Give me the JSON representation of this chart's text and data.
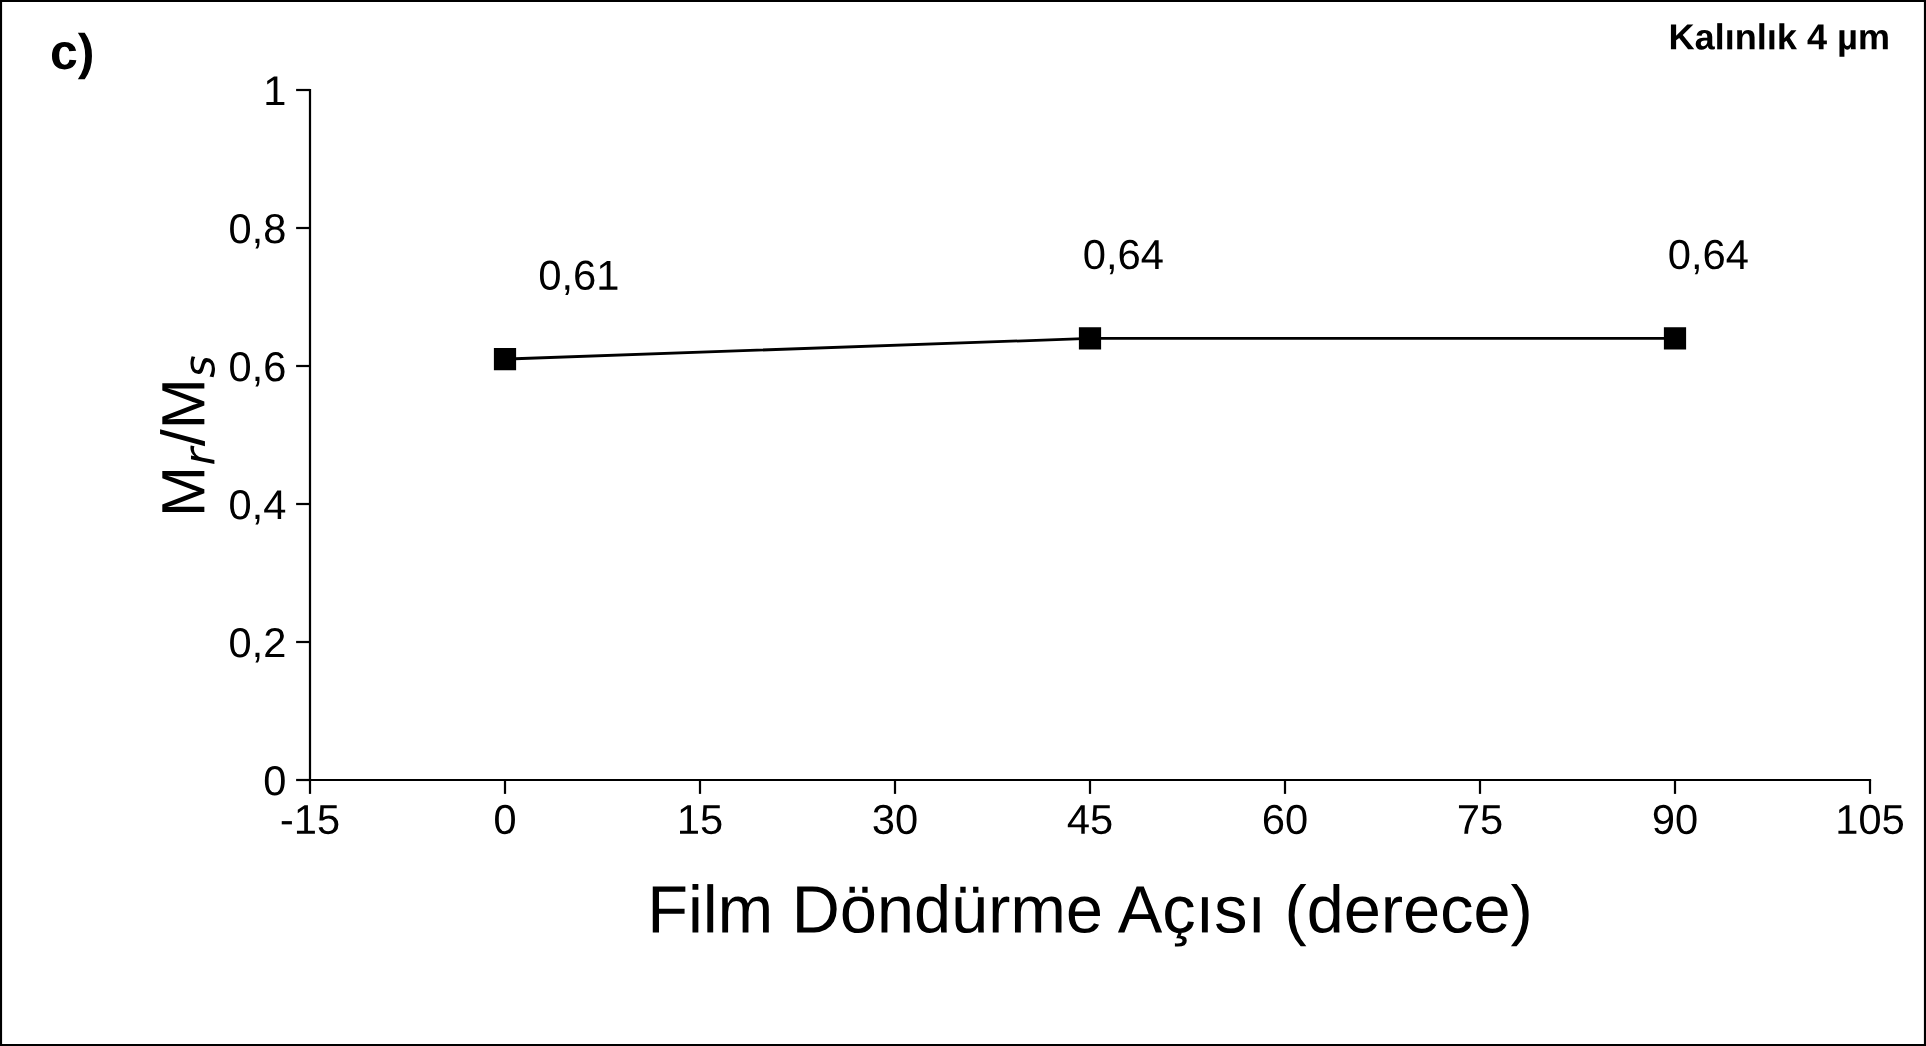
{
  "chart_data": {
    "type": "line",
    "xlabel": "Film Döndürme Açısı (derece)",
    "ylabel": "M$_{r}$/M$_{s}$",
    "x": [
      0,
      45,
      90
    ],
    "series": [
      {
        "color": "#000000",
        "values": [
          0.61,
          0.64,
          0.64
        ],
        "value_labels": [
          "0,61",
          "0,64",
          "0,64"
        ]
      }
    ],
    "xlim": [
      -15,
      105
    ],
    "xticks": [
      -15,
      0,
      15,
      30,
      45,
      60,
      75,
      90,
      105
    ],
    "ylim": [
      0,
      1
    ],
    "yticks": [
      {
        "value": 0,
        "label": "0"
      },
      {
        "value": 0.2,
        "label": "0,2"
      },
      {
        "value": 0.4,
        "label": "0,4"
      },
      {
        "value": 0.6,
        "label": "0,6"
      },
      {
        "value": 0.8,
        "label": "0,8"
      },
      {
        "value": 1,
        "label": "1"
      }
    ],
    "marker": "square",
    "line_style": "solid",
    "grid": false,
    "legend": false,
    "annotations": [
      "c)",
      "Kalınlık 4 µm"
    ]
  }
}
